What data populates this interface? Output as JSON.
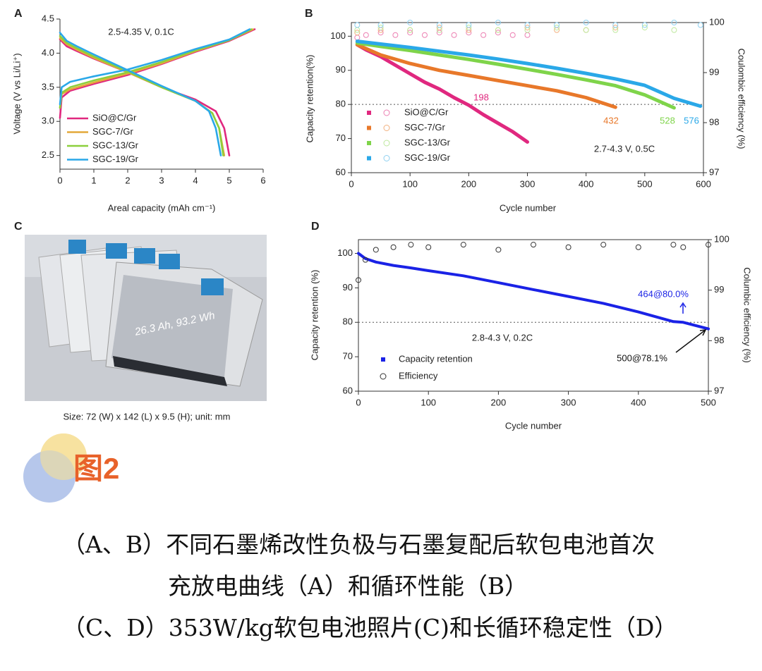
{
  "chart_data": [
    {
      "type": "line",
      "panel": "A",
      "conditions": "2.5-4.35 V, 0.1C",
      "x_label": "Areal capacity (mAh cm⁻¹)",
      "y_label": "Voltage (V vs Li/Li⁺)",
      "xlim": [
        0,
        6
      ],
      "ylim": [
        2.3,
        4.5
      ],
      "xticks": [
        0,
        1,
        2,
        3,
        4,
        5,
        6
      ],
      "yticks": [
        2.5,
        {
          "value": 3,
          "label": "3.0"
        },
        3.5,
        {
          "value": 4,
          "label": "4.0"
        },
        4.5
      ],
      "series": [
        {
          "name": "SiO@C/Gr",
          "color": "#e0287f",
          "x": [
            0,
            0.05,
            0.3,
            1,
            2,
            3,
            4,
            5,
            5.75,
            null,
            0,
            0.2,
            0.5,
            1,
            2,
            3,
            4,
            4.6,
            4.85,
            5.0
          ],
          "values": [
            3.05,
            3.35,
            3.45,
            3.55,
            3.68,
            3.84,
            4.02,
            4.18,
            4.35,
            null,
            4.2,
            4.1,
            4.03,
            3.92,
            3.72,
            3.5,
            3.32,
            3.15,
            2.9,
            2.5
          ]
        },
        {
          "name": "SGC-7/Gr",
          "color": "#e3a93a",
          "x": [
            0,
            0.05,
            0.3,
            1,
            2,
            3,
            4,
            5,
            5.7,
            null,
            0,
            0.2,
            0.5,
            1,
            2,
            3,
            4,
            4.5,
            4.7,
            4.85
          ],
          "values": [
            3.2,
            3.4,
            3.47,
            3.57,
            3.7,
            3.85,
            4.03,
            4.19,
            4.35,
            null,
            4.22,
            4.13,
            4.05,
            3.93,
            3.72,
            3.5,
            3.3,
            3.12,
            2.9,
            2.5
          ]
        },
        {
          "name": "SGC-13/Gr",
          "color": "#8ccf3c",
          "x": [
            0,
            0.05,
            0.3,
            1,
            2,
            3,
            4,
            5,
            5.65,
            null,
            0,
            0.2,
            0.5,
            1,
            2,
            3,
            4,
            4.5,
            4.7,
            4.82
          ],
          "values": [
            3.2,
            3.42,
            3.5,
            3.6,
            3.72,
            3.87,
            4.04,
            4.19,
            4.35,
            null,
            4.25,
            4.15,
            4.07,
            3.95,
            3.73,
            3.5,
            3.3,
            3.12,
            2.9,
            2.5
          ]
        },
        {
          "name": "SGC-19/Gr",
          "color": "#2aa8e8",
          "x": [
            0,
            0.05,
            0.3,
            1,
            2,
            3,
            4,
            5,
            5.6,
            null,
            0,
            0.2,
            0.5,
            1,
            2,
            3,
            4,
            4.4,
            4.6,
            4.75
          ],
          "values": [
            3.25,
            3.5,
            3.58,
            3.66,
            3.76,
            3.9,
            4.06,
            4.2,
            4.35,
            null,
            4.3,
            4.18,
            4.1,
            3.98,
            3.75,
            3.52,
            3.3,
            3.15,
            2.9,
            2.5
          ]
        }
      ]
    },
    {
      "type": "line",
      "panel": "B",
      "conditions": "2.7-4.3 V, 0.5C",
      "x_label": "Cycle number",
      "y_label": "Capacity retention(%)",
      "y2_label": "Coulombic efficiency (%)",
      "xlim": [
        0,
        600
      ],
      "ylim": [
        60,
        104
      ],
      "y2lim": [
        97,
        100
      ],
      "xticks": [
        0,
        100,
        200,
        300,
        400,
        500,
        600
      ],
      "yticks": [
        60,
        70,
        80,
        90,
        100
      ],
      "y2ticks": [
        97,
        98,
        99,
        100
      ],
      "hline": 80,
      "annotations": [
        "198",
        "432",
        "528",
        "576"
      ],
      "series": [
        {
          "name": "SiO@C/Gr",
          "color": "#e0287f",
          "efficiency_color": "#ec7fb2",
          "x": [
            10,
            25,
            50,
            75,
            100,
            125,
            150,
            175,
            200,
            225,
            250,
            275,
            300
          ],
          "values": [
            97.5,
            96,
            94,
            91.5,
            89,
            86.5,
            84.5,
            82,
            79.8,
            77,
            74.5,
            72,
            69
          ],
          "efficiency": [
            99.7,
            99.75,
            99.8,
            99.75,
            99.8,
            99.75,
            99.8,
            99.75,
            99.8,
            99.75,
            99.8,
            99.75,
            99.75
          ]
        },
        {
          "name": "SGC-7/Gr",
          "color": "#e8782a",
          "efficiency_color": "#f2b07e",
          "x": [
            10,
            50,
            100,
            150,
            200,
            250,
            300,
            350,
            400,
            450
          ],
          "values": [
            97.5,
            94.5,
            92,
            90,
            88.5,
            87,
            85.5,
            84,
            82,
            79.2
          ],
          "efficiency": [
            99.8,
            99.85,
            99.85,
            99.9,
            99.85,
            99.85,
            99.9,
            99.85,
            99.85,
            99.9
          ]
        },
        {
          "name": "SGC-13/Gr",
          "color": "#7fd44a",
          "efficiency_color": "#bde89c",
          "x": [
            10,
            50,
            100,
            150,
            200,
            250,
            300,
            350,
            400,
            450,
            500,
            550
          ],
          "values": [
            98,
            97,
            95.8,
            94.5,
            93.2,
            91.8,
            90.3,
            88.8,
            87.2,
            85.5,
            82.8,
            79
          ],
          "efficiency": [
            99.85,
            99.9,
            99.85,
            99.85,
            99.9,
            99.85,
            99.85,
            99.9,
            99.85,
            99.85,
            99.9,
            99.85
          ]
        },
        {
          "name": "SGC-19/Gr",
          "color": "#2aa8e8",
          "efficiency_color": "#8fd0f0",
          "x": [
            10,
            50,
            100,
            150,
            200,
            250,
            300,
            350,
            400,
            450,
            500,
            550,
            595
          ],
          "values": [
            98.5,
            97.7,
            96.7,
            95.6,
            94.5,
            93.3,
            92,
            90.6,
            89.1,
            87.5,
            85.6,
            81.8,
            79.5
          ],
          "efficiency": [
            99.95,
            99.95,
            100,
            99.95,
            99.95,
            100,
            99.95,
            99.95,
            100,
            99.95,
            99.95,
            100,
            99.95
          ]
        }
      ]
    },
    {
      "type": "line",
      "panel": "D",
      "conditions": "2.8-4.3 V, 0.2C",
      "x_label": "Cycle number",
      "y_label": "Capacity retention (%)",
      "y2_label": "Columbic efficiency (%)",
      "xlim": [
        0,
        500
      ],
      "ylim": [
        60,
        104
      ],
      "y2lim": [
        97,
        100
      ],
      "xticks": [
        0,
        100,
        200,
        300,
        400,
        500
      ],
      "yticks": [
        60,
        70,
        80,
        90,
        100
      ],
      "y2ticks": [
        97,
        98,
        99,
        100
      ],
      "hline": 80,
      "annotations": [
        "464@80.0%",
        "500@78.1%"
      ],
      "x": [
        0,
        10,
        25,
        50,
        75,
        100,
        150,
        200,
        250,
        300,
        350,
        400,
        450,
        464,
        500
      ],
      "series": [
        {
          "name": "Capacity retention",
          "color": "#1a22e6",
          "values": [
            100,
            98.5,
            97.5,
            96.5,
            95.8,
            95,
            93.5,
            91.5,
            89.5,
            87.5,
            85.5,
            83,
            80.2,
            80.0,
            78.1
          ]
        },
        {
          "name": "Efficiency",
          "color": "#333333",
          "axis": "y2",
          "marker": "open-circle",
          "values": [
            99.2,
            99.6,
            99.8,
            99.85,
            99.9,
            99.85,
            99.9,
            99.8,
            99.9,
            99.85,
            99.9,
            99.85,
            99.9,
            99.85,
            99.9
          ]
        }
      ]
    }
  ],
  "photo": {
    "panel": "C",
    "label": "26.3 Ah, 93.2 Wh",
    "size_note": "Size: 72 (W) x 142 (L) x 9.5 (H); unit: mm"
  },
  "figure_label": "图2",
  "caption": [
    "（A、B）不同石墨烯改性负极与石墨复配后软包电池首次",
    "充放电曲线（A）和循环性能（B）",
    "（C、D）353W/kg软包电池照片(C)和长循环稳定性（D）"
  ]
}
